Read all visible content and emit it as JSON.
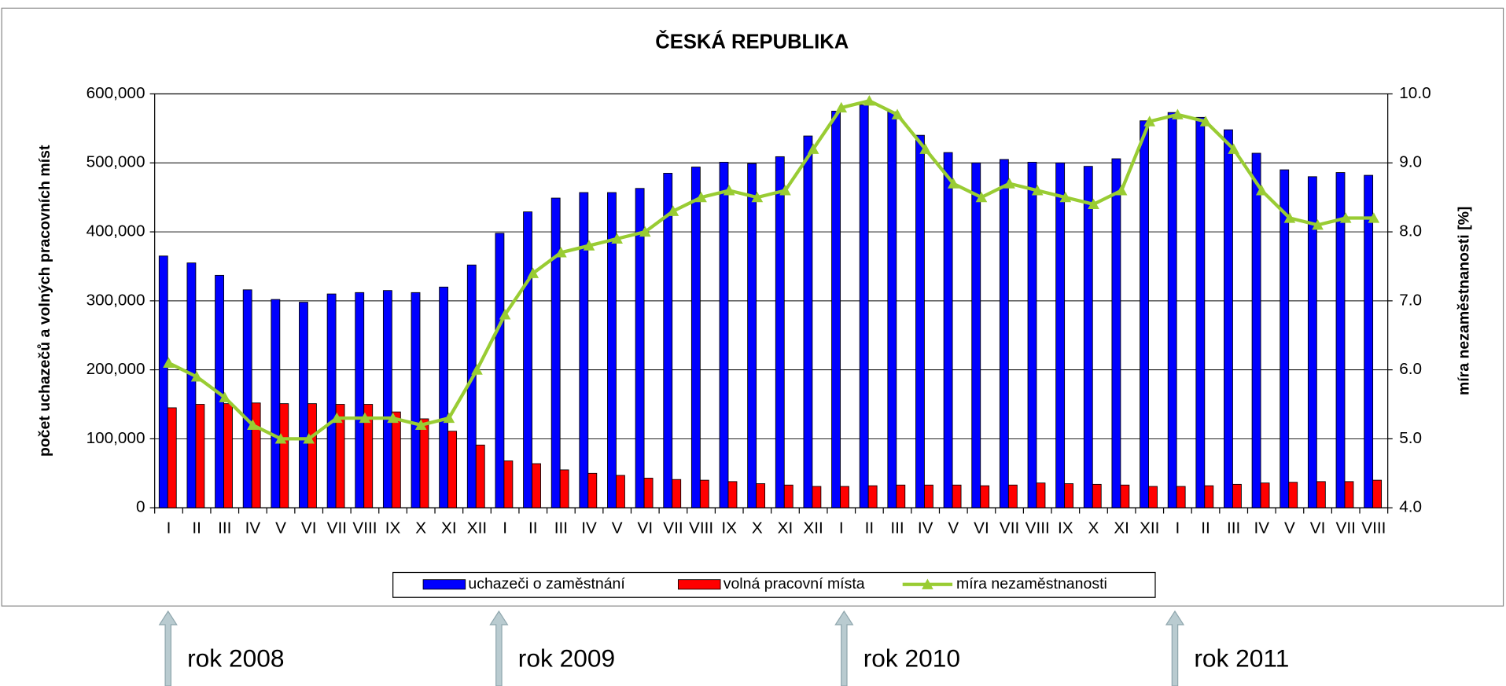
{
  "chart_data": {
    "type": "bar-line",
    "title": "ČESKÁ REPUBLIKA",
    "ylabel": "počet uchazečů a volných pracovních míst",
    "y2label": "míra nezaměstnanosti [%]",
    "categories": [
      "I",
      "II",
      "III",
      "IV",
      "V",
      "VI",
      "VII",
      "VIII",
      "IX",
      "X",
      "XI",
      "XII",
      "I",
      "II",
      "III",
      "IV",
      "V",
      "VI",
      "VII",
      "VIII",
      "IX",
      "X",
      "XI",
      "XII",
      "I",
      "II",
      "III",
      "IV",
      "V",
      "VI",
      "VII",
      "VIII",
      "IX",
      "X",
      "XI",
      "XII",
      "I",
      "II",
      "III",
      "IV",
      "V",
      "VI",
      "VII",
      "VIII"
    ],
    "series": [
      {
        "name": "uchazeči o zaměstnání",
        "type": "bar",
        "color": "#0000ff",
        "values": [
          365000,
          355000,
          337000,
          316000,
          302000,
          298000,
          310000,
          312000,
          315000,
          312000,
          320000,
          352000,
          398000,
          429000,
          449000,
          457000,
          457000,
          463000,
          485000,
          494000,
          501000,
          499000,
          509000,
          539000,
          575000,
          584000,
          574000,
          540000,
          515000,
          500000,
          505000,
          501000,
          500000,
          495000,
          506000,
          561000,
          573000,
          566000,
          548000,
          514000,
          490000,
          480000,
          486000,
          482000
        ]
      },
      {
        "name": "volná pracovní místa",
        "type": "bar",
        "color": "#ff0000",
        "values": [
          145000,
          150000,
          151000,
          152000,
          151000,
          151000,
          150000,
          150000,
          139000,
          129000,
          111000,
          91000,
          68000,
          64000,
          55000,
          50000,
          47000,
          43000,
          41000,
          40000,
          38000,
          35000,
          33000,
          31000,
          31000,
          32000,
          33000,
          33000,
          33000,
          32000,
          33000,
          36000,
          35000,
          34000,
          33000,
          31000,
          31000,
          32000,
          34000,
          36000,
          37000,
          38000,
          38000,
          40000
        ]
      },
      {
        "name": "míra nezaměstnanosti",
        "type": "line",
        "axis": "y2",
        "color": "#99cc33",
        "values": [
          6.1,
          5.9,
          5.6,
          5.2,
          5.0,
          5.0,
          5.3,
          5.3,
          5.3,
          5.2,
          5.3,
          6.0,
          6.8,
          7.4,
          7.7,
          7.8,
          7.9,
          8.0,
          8.3,
          8.5,
          8.6,
          8.5,
          8.6,
          9.2,
          9.8,
          9.9,
          9.7,
          9.2,
          8.7,
          8.5,
          8.7,
          8.6,
          8.5,
          8.4,
          8.6,
          9.6,
          9.7,
          9.6,
          9.2,
          8.6,
          8.2,
          8.1,
          8.2,
          8.2
        ]
      }
    ],
    "ylim": [
      0,
      600000
    ],
    "yticks": [
      0,
      {
        "value": 100000,
        "label": "100,000"
      },
      {
        "value": 200000,
        "label": "200,000"
      },
      {
        "value": 300000,
        "label": "300,000"
      },
      {
        "value": 400000,
        "label": "400,000"
      },
      {
        "value": 500000,
        "label": "500,000"
      },
      {
        "value": 600000,
        "label": "600,000"
      }
    ],
    "y2lim": [
      4,
      10
    ],
    "y2ticks": [
      {
        "value": 4,
        "label": "4.0"
      },
      {
        "value": 5,
        "label": "5.0"
      },
      {
        "value": 6,
        "label": "6.0"
      },
      {
        "value": 7,
        "label": "7.0"
      },
      {
        "value": 8,
        "label": "8.0"
      },
      {
        "value": 9,
        "label": "9.0"
      },
      {
        "value": 10,
        "label": "10.0"
      }
    ],
    "grid": true,
    "legend": "bottom",
    "annotations": [
      "rok 2008",
      "rok 2009",
      "rok 2010",
      "rok 2011"
    ]
  }
}
